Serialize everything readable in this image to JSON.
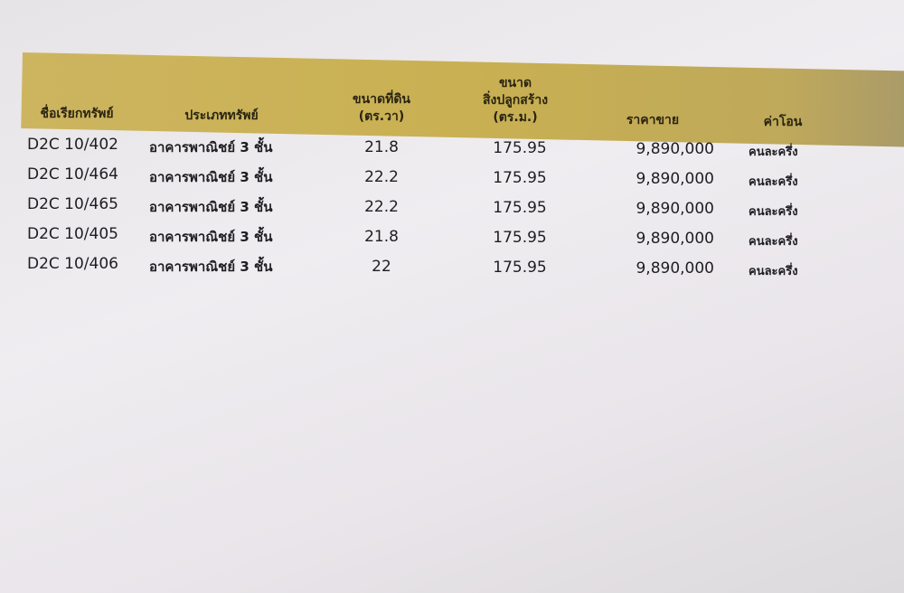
{
  "table": {
    "headers": [
      [
        "ชื่อเรียกทรัพย์"
      ],
      [
        "ประเภททรัพย์"
      ],
      [
        "ขนาดที่ดิน",
        "(ตร.วา)"
      ],
      [
        "ขนาด",
        "สิ่งปลูกสร้าง",
        "(ตร.ม.)"
      ],
      [
        "ราคาขาย"
      ],
      [
        "ค่าโอน"
      ]
    ],
    "rows": [
      [
        "D2C 10/402",
        "อาคารพาณิชย์ 3 ชั้น",
        "21.8",
        "175.95",
        "9,890,000",
        "คนละครึ่ง"
      ],
      [
        "D2C 10/464",
        "อาคารพาณิชย์ 3 ชั้น",
        "22.2",
        "175.95",
        "9,890,000",
        "คนละครึ่ง"
      ],
      [
        "D2C 10/465",
        "อาคารพาณิชย์ 3 ชั้น",
        "22.2",
        "175.95",
        "9,890,000",
        "คนละครึ่ง"
      ],
      [
        "D2C 10/405",
        "อาคารพาณิชย์ 3 ชั้น",
        "21.8",
        "175.95",
        "9,890,000",
        "คนละครึ่ง"
      ],
      [
        "D2C 10/406",
        "อาคารพาณิชย์ 3 ชั้น",
        "22",
        "175.95",
        "9,890,000",
        "คนละครึ่ง"
      ]
    ]
  }
}
